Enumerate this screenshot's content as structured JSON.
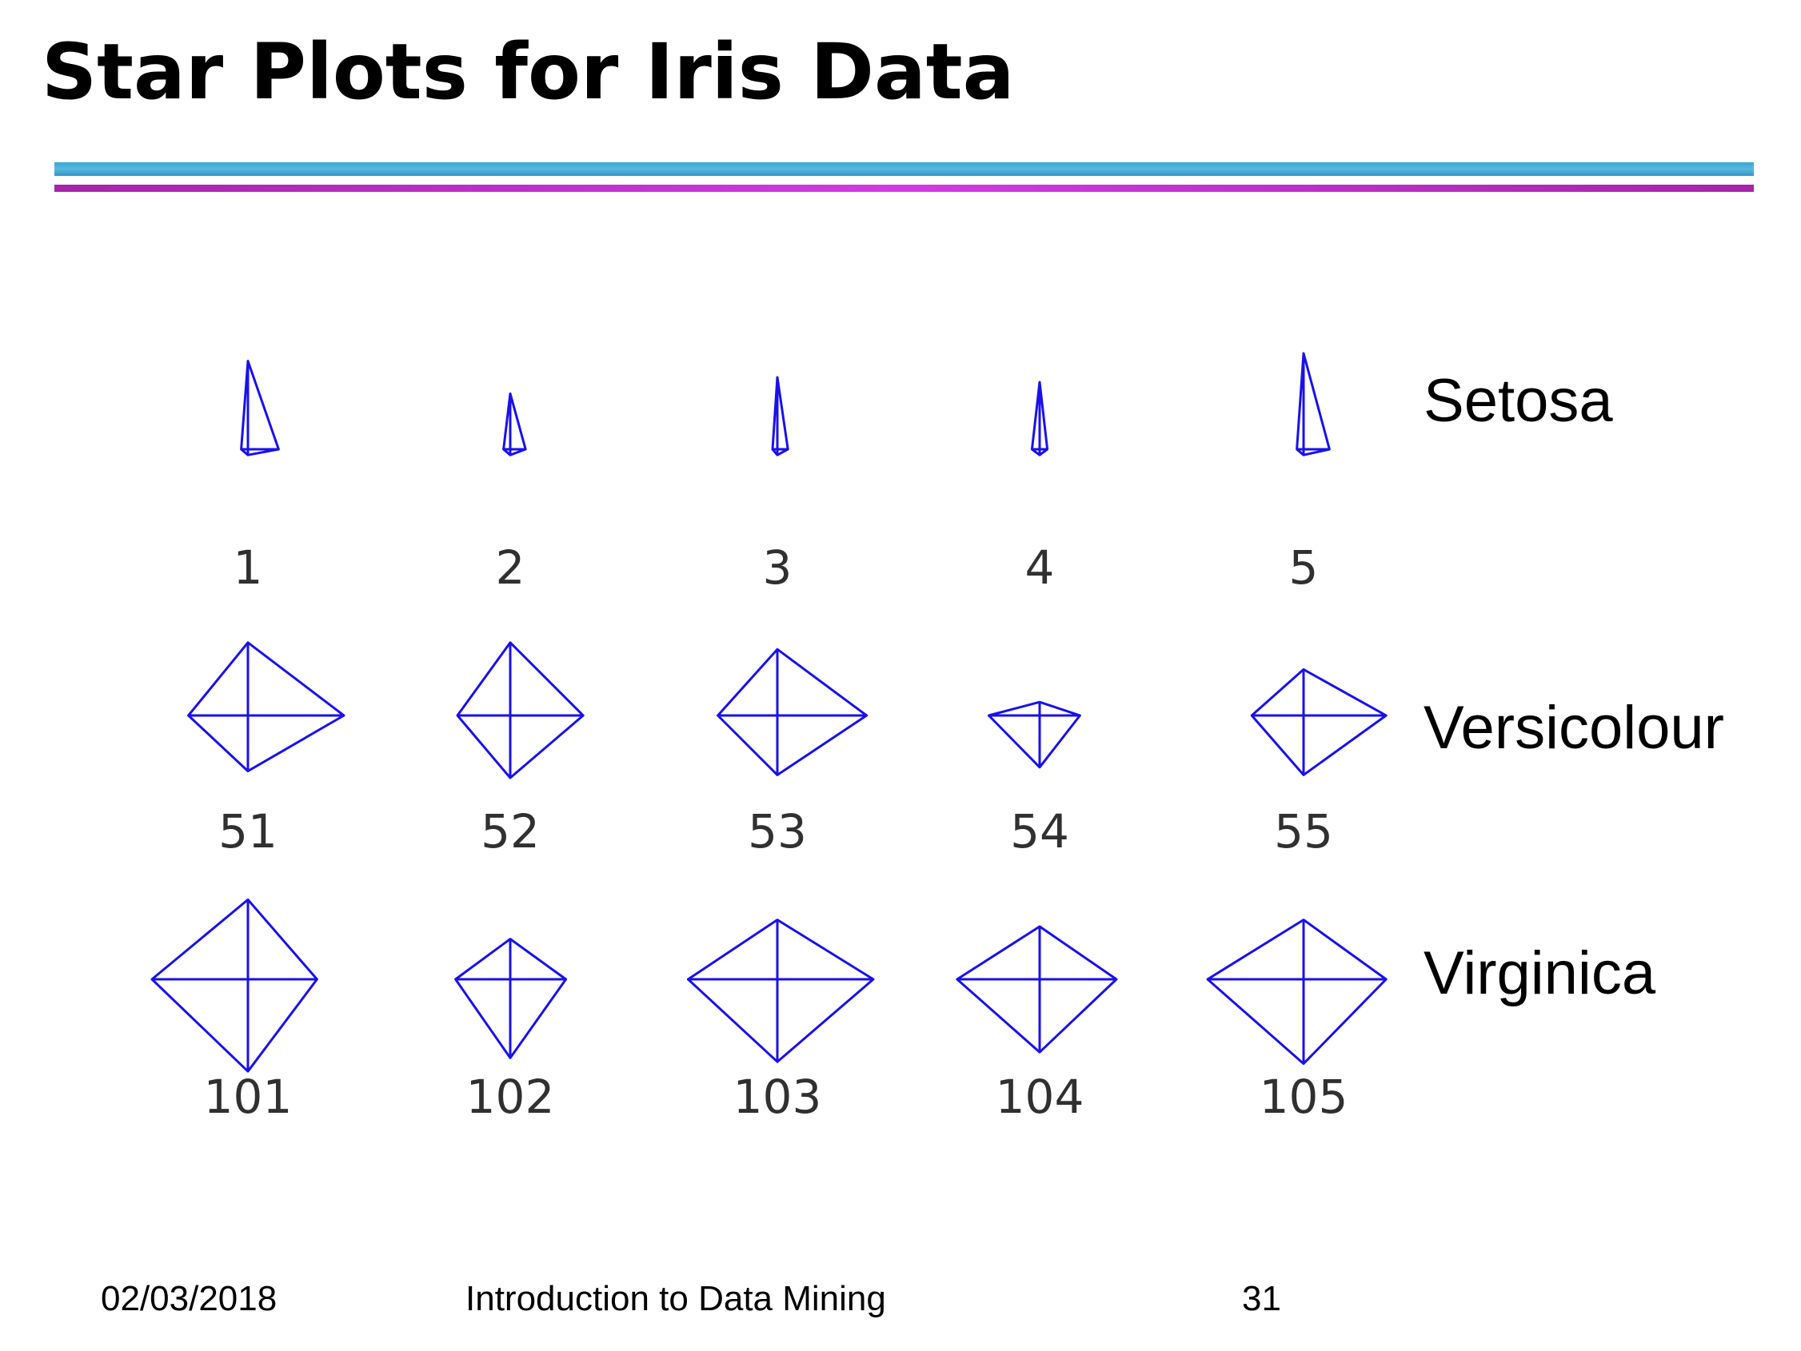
{
  "slide": {
    "title": "Star Plots for Iris Data",
    "footer": {
      "date": "02/03/2018",
      "course": "Introduction to Data Mining",
      "page": "31"
    }
  },
  "colors": {
    "stroke": "#1a10ee",
    "rule_blue": "#3aa7d6",
    "rule_magenta": "#c030d0"
  },
  "chart_data": {
    "type": "star",
    "title": "",
    "variables": [
      "",
      "",
      "",
      ""
    ],
    "classes": [
      {
        "name": "Setosa",
        "observations": [
          {
            "label": "1",
            "values": [
              0.32,
              0.92,
              0.07,
              0.06
            ]
          },
          {
            "label": "2",
            "values": [
              0.16,
              0.58,
              0.07,
              0.06
            ]
          },
          {
            "label": "3",
            "values": [
              0.11,
              0.75,
              0.05,
              0.06
            ]
          },
          {
            "label": "4",
            "values": [
              0.08,
              0.7,
              0.08,
              0.06
            ]
          },
          {
            "label": "5",
            "values": [
              0.27,
              1.0,
              0.07,
              0.06
            ]
          }
        ]
      },
      {
        "name": "Versicolour",
        "observations": [
          {
            "label": "51",
            "values": [
              1.0,
              0.76,
              0.62,
              0.58
            ]
          },
          {
            "label": "52",
            "values": [
              0.76,
              0.76,
              0.55,
              0.65
            ]
          },
          {
            "label": "53",
            "values": [
              0.93,
              0.69,
              0.62,
              0.62
            ]
          },
          {
            "label": "54",
            "values": [
              0.42,
              0.14,
              0.53,
              0.54
            ]
          },
          {
            "label": "55",
            "values": [
              0.86,
              0.48,
              0.54,
              0.62
            ]
          }
        ]
      },
      {
        "name": "Virginica",
        "observations": [
          {
            "label": "101",
            "values": [
              0.72,
              0.83,
              1.0,
              0.96
            ]
          },
          {
            "label": "102",
            "values": [
              0.58,
              0.42,
              0.57,
              0.82
            ]
          },
          {
            "label": "103",
            "values": [
              1.0,
              0.62,
              0.93,
              0.86
            ]
          },
          {
            "label": "104",
            "values": [
              0.8,
              0.55,
              0.86,
              0.76
            ]
          },
          {
            "label": "105",
            "values": [
              0.86,
              0.62,
              1.0,
              0.88
            ]
          }
        ]
      }
    ]
  }
}
